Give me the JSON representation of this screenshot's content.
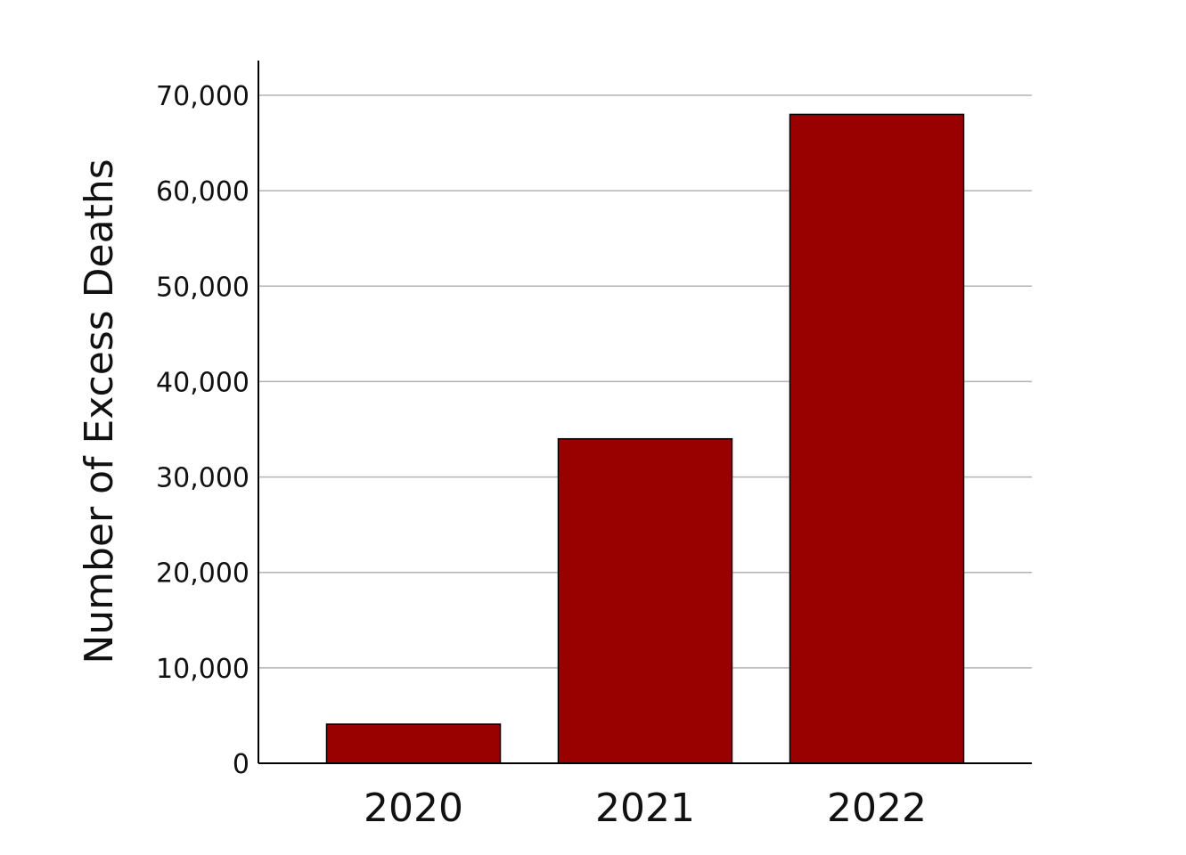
{
  "chart_data": {
    "type": "bar",
    "categories": [
      "2020",
      "2021",
      "2022"
    ],
    "values": [
      4100,
      34000,
      68000
    ],
    "title": "",
    "xlabel": "",
    "ylabel": "Number of Excess Deaths",
    "ylim": [
      0,
      70000
    ],
    "yticks": [
      0,
      10000,
      20000,
      30000,
      40000,
      50000,
      60000,
      70000
    ],
    "ytick_labels": [
      "0",
      "10,000",
      "20,000",
      "30,000",
      "40,000",
      "50,000",
      "60,000",
      "70,000"
    ],
    "grid": true,
    "legend": "none",
    "colors": {
      "bar_fill": "#990000",
      "bar_stroke": "#000000",
      "grid": "#b3b3b3",
      "axis": "#000000"
    }
  }
}
